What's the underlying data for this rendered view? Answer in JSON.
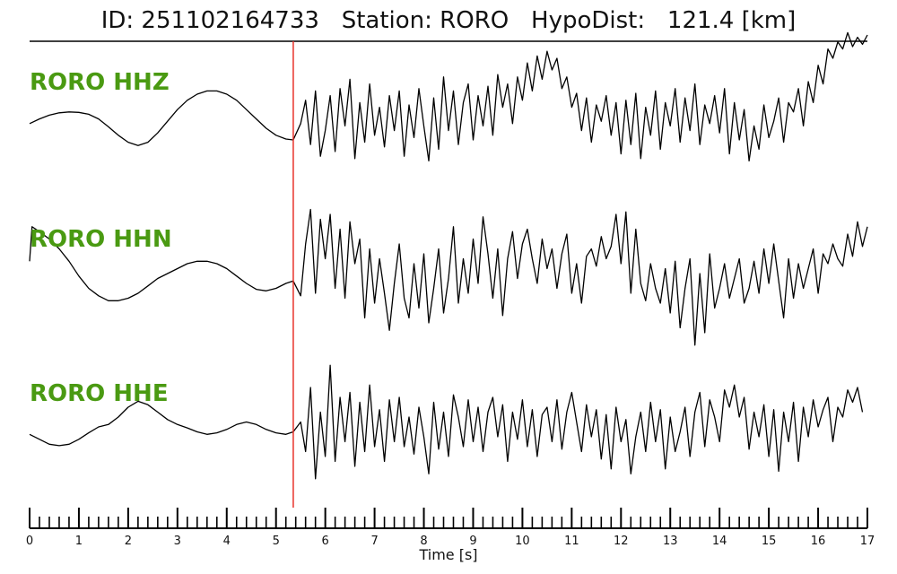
{
  "title": "ID: 251102164733   Station: RORO   HypoDist:   121.4 [km]",
  "chart_data": {
    "type": "line",
    "title": "ID: 251102164733   Station: RORO   HypoDist:   121.4 [km]",
    "xlabel": "Time [s]",
    "xlim": [
      0,
      17
    ],
    "xticks": [
      "0",
      "1",
      "2",
      "3",
      "4",
      "5",
      "6",
      "7",
      "8",
      "9",
      "10",
      "11",
      "12",
      "13",
      "14",
      "15",
      "16",
      "17"
    ],
    "minor_tick_step": 0.2,
    "pick_time": 5.35,
    "pick_color": "#e8322a",
    "label_color": "#4a9a12",
    "trace_color": "#000000",
    "series": [
      {
        "name": "RORO HHZ",
        "t": [
          0,
          0.2,
          0.4,
          0.6,
          0.8,
          1.0,
          1.2,
          1.4,
          1.6,
          1.8,
          2.0,
          2.2,
          2.4,
          2.6,
          2.8,
          3.0,
          3.2,
          3.4,
          3.6,
          3.8,
          4.0,
          4.2,
          4.4,
          4.6,
          4.8,
          5.0,
          5.2,
          5.35,
          5.5,
          5.6,
          5.7,
          5.8,
          5.9,
          6.0,
          6.1,
          6.2,
          6.3,
          6.4,
          6.5,
          6.6,
          6.7,
          6.8,
          6.9,
          7.0,
          7.1,
          7.2,
          7.3,
          7.4,
          7.5,
          7.6,
          7.7,
          7.8,
          7.9,
          8.0,
          8.1,
          8.2,
          8.3,
          8.4,
          8.5,
          8.6,
          8.7,
          8.8,
          8.9,
          9.0,
          9.1,
          9.2,
          9.3,
          9.4,
          9.5,
          9.6,
          9.7,
          9.8,
          9.9,
          10.0,
          10.1,
          10.2,
          10.3,
          10.4,
          10.5,
          10.6,
          10.7,
          10.8,
          10.9,
          11.0,
          11.1,
          11.2,
          11.3,
          11.4,
          11.5,
          11.6,
          11.7,
          11.8,
          11.9,
          12.0,
          12.1,
          12.2,
          12.3,
          12.4,
          12.5,
          12.6,
          12.7,
          12.8,
          12.9,
          13.0,
          13.1,
          13.2,
          13.3,
          13.4,
          13.5,
          13.6,
          13.7,
          13.8,
          13.9,
          14.0,
          14.1,
          14.2,
          14.3,
          14.4,
          14.5,
          14.6,
          14.7,
          14.8,
          14.9,
          15.0,
          15.1,
          15.2,
          15.3,
          15.4,
          15.5,
          15.6,
          15.7,
          15.8,
          15.9,
          16.0,
          16.1,
          16.2,
          16.3,
          16.4,
          16.5,
          16.6,
          16.7,
          16.8,
          16.9,
          17.0
        ],
        "v": [
          -0.15,
          -0.05,
          0.03,
          0.08,
          0.1,
          0.09,
          0.05,
          -0.05,
          -0.22,
          -0.4,
          -0.55,
          -0.62,
          -0.55,
          -0.35,
          -0.1,
          0.15,
          0.35,
          0.48,
          0.55,
          0.55,
          0.48,
          0.35,
          0.15,
          -0.05,
          -0.25,
          -0.4,
          -0.48,
          -0.5,
          -0.15,
          0.35,
          -0.6,
          0.55,
          -0.85,
          -0.3,
          0.45,
          -0.75,
          0.6,
          -0.2,
          0.8,
          -0.9,
          0.3,
          -0.55,
          0.7,
          -0.4,
          0.2,
          -0.65,
          0.45,
          -0.3,
          0.55,
          -0.85,
          0.25,
          -0.45,
          0.6,
          -0.2,
          -0.95,
          0.4,
          -0.7,
          0.85,
          -0.3,
          0.55,
          -0.6,
          0.3,
          0.7,
          -0.5,
          0.45,
          -0.2,
          0.65,
          -0.4,
          0.9,
          0.2,
          0.7,
          -0.15,
          0.85,
          0.35,
          1.15,
          0.55,
          1.3,
          0.8,
          1.4,
          1.0,
          1.25,
          0.6,
          0.85,
          0.2,
          0.5,
          -0.3,
          0.4,
          -0.55,
          0.25,
          -0.1,
          0.45,
          -0.4,
          0.3,
          -0.8,
          0.35,
          -0.6,
          0.5,
          -0.9,
          0.2,
          -0.4,
          0.55,
          -0.7,
          0.3,
          -0.2,
          0.6,
          -0.55,
          0.4,
          -0.3,
          0.7,
          -0.6,
          0.25,
          -0.15,
          0.45,
          -0.35,
          0.6,
          -0.8,
          0.3,
          -0.5,
          0.15,
          -0.95,
          -0.2,
          -0.7,
          0.25,
          -0.45,
          -0.1,
          0.4,
          -0.55,
          0.3,
          0.1,
          0.6,
          -0.2,
          0.75,
          0.3,
          1.1,
          0.7,
          1.45,
          1.25,
          1.6,
          1.45,
          1.8,
          1.5,
          1.7,
          1.55,
          1.75,
          1.6
        ]
      },
      {
        "name": "RORO HHN",
        "t": [
          0,
          0.05,
          0.2,
          0.4,
          0.6,
          0.8,
          1.0,
          1.2,
          1.4,
          1.6,
          1.8,
          2.0,
          2.2,
          2.4,
          2.6,
          2.8,
          3.0,
          3.2,
          3.4,
          3.6,
          3.8,
          4.0,
          4.2,
          4.4,
          4.6,
          4.8,
          5.0,
          5.2,
          5.35,
          5.5,
          5.6,
          5.7,
          5.8,
          5.9,
          6.0,
          6.1,
          6.2,
          6.3,
          6.4,
          6.5,
          6.6,
          6.7,
          6.8,
          6.9,
          7.0,
          7.1,
          7.2,
          7.3,
          7.4,
          7.5,
          7.6,
          7.7,
          7.8,
          7.9,
          8.0,
          8.1,
          8.2,
          8.3,
          8.4,
          8.5,
          8.6,
          8.7,
          8.8,
          8.9,
          9.0,
          9.1,
          9.2,
          9.3,
          9.4,
          9.5,
          9.6,
          9.7,
          9.8,
          9.9,
          10.0,
          10.1,
          10.2,
          10.3,
          10.4,
          10.5,
          10.6,
          10.7,
          10.8,
          10.9,
          11.0,
          11.1,
          11.2,
          11.3,
          11.4,
          11.5,
          11.6,
          11.7,
          11.8,
          11.9,
          12.0,
          12.1,
          12.2,
          12.3,
          12.4,
          12.5,
          12.6,
          12.7,
          12.8,
          12.9,
          13.0,
          13.1,
          13.2,
          13.3,
          13.4,
          13.5,
          13.6,
          13.7,
          13.8,
          13.9,
          14.0,
          14.1,
          14.2,
          14.3,
          14.4,
          14.5,
          14.6,
          14.7,
          14.8,
          14.9,
          15.0,
          15.1,
          15.2,
          15.3,
          15.4,
          15.5,
          15.6,
          15.7,
          15.8,
          15.9,
          16.0,
          16.1,
          16.2,
          16.3,
          16.4,
          16.5,
          16.6,
          16.7,
          16.8,
          16.9,
          17.0
        ],
        "v": [
          0.25,
          0.95,
          0.85,
          0.7,
          0.5,
          0.25,
          -0.05,
          -0.3,
          -0.45,
          -0.55,
          -0.55,
          -0.5,
          -0.4,
          -0.25,
          -0.1,
          0.0,
          0.1,
          0.2,
          0.25,
          0.25,
          0.2,
          0.1,
          -0.05,
          -0.2,
          -0.32,
          -0.35,
          -0.3,
          -0.2,
          -0.15,
          -0.45,
          0.6,
          1.3,
          -0.4,
          1.1,
          0.3,
          1.2,
          -0.3,
          0.9,
          -0.5,
          1.05,
          0.2,
          0.7,
          -0.9,
          0.5,
          -0.6,
          0.3,
          -0.4,
          -1.15,
          -0.2,
          0.6,
          -0.5,
          -0.9,
          0.2,
          -0.7,
          0.4,
          -1.0,
          -0.3,
          0.5,
          -0.8,
          -0.1,
          0.95,
          -0.6,
          0.3,
          -0.4,
          0.7,
          -0.2,
          1.15,
          0.4,
          -0.5,
          0.5,
          -0.85,
          0.3,
          0.85,
          -0.1,
          0.6,
          0.9,
          0.3,
          -0.2,
          0.7,
          0.1,
          0.5,
          -0.3,
          0.4,
          0.8,
          -0.4,
          0.2,
          -0.6,
          0.35,
          0.5,
          0.15,
          0.75,
          0.3,
          0.55,
          1.2,
          0.2,
          1.25,
          -0.4,
          0.9,
          -0.2,
          -0.55,
          0.2,
          -0.3,
          -0.6,
          0.1,
          -0.8,
          0.25,
          -1.1,
          -0.3,
          0.3,
          -1.45,
          0.0,
          -1.2,
          0.4,
          -0.7,
          -0.3,
          0.2,
          -0.5,
          -0.1,
          0.3,
          -0.6,
          -0.3,
          0.25,
          -0.4,
          0.5,
          -0.2,
          0.6,
          -0.15,
          -0.9,
          0.3,
          -0.5,
          0.2,
          -0.3,
          0.1,
          0.5,
          -0.4,
          0.4,
          0.2,
          0.6,
          0.3,
          0.15,
          0.8,
          0.35,
          1.05,
          0.55,
          0.95
        ]
      },
      {
        "name": "RORO HHE",
        "t": [
          0,
          0.2,
          0.4,
          0.6,
          0.8,
          1.0,
          1.2,
          1.4,
          1.6,
          1.8,
          2.0,
          2.2,
          2.4,
          2.6,
          2.8,
          3.0,
          3.2,
          3.4,
          3.6,
          3.8,
          4.0,
          4.2,
          4.4,
          4.6,
          4.8,
          5.0,
          5.2,
          5.35,
          5.5,
          5.6,
          5.7,
          5.8,
          5.9,
          6.0,
          6.1,
          6.2,
          6.3,
          6.4,
          6.5,
          6.6,
          6.7,
          6.8,
          6.9,
          7.0,
          7.1,
          7.2,
          7.3,
          7.4,
          7.5,
          7.6,
          7.7,
          7.8,
          7.9,
          8.0,
          8.1,
          8.2,
          8.3,
          8.4,
          8.5,
          8.6,
          8.7,
          8.8,
          8.9,
          9.0,
          9.1,
          9.2,
          9.3,
          9.4,
          9.5,
          9.6,
          9.7,
          9.8,
          9.9,
          10.0,
          10.1,
          10.2,
          10.3,
          10.4,
          10.5,
          10.6,
          10.7,
          10.8,
          10.9,
          11.0,
          11.1,
          11.2,
          11.3,
          11.4,
          11.5,
          11.6,
          11.7,
          11.8,
          11.9,
          12.0,
          12.1,
          12.2,
          12.3,
          12.4,
          12.5,
          12.6,
          12.7,
          12.8,
          12.9,
          13.0,
          13.1,
          13.2,
          13.3,
          13.4,
          13.5,
          13.6,
          13.7,
          13.8,
          13.9,
          14.0,
          14.1,
          14.2,
          14.3,
          14.4,
          14.5,
          14.6,
          14.7,
          14.8,
          14.9,
          15.0,
          15.1,
          15.2,
          15.3,
          15.4,
          15.5,
          15.6,
          15.7,
          15.8,
          15.9,
          16.0,
          16.1,
          16.2,
          16.3,
          16.4,
          16.5,
          16.6,
          16.7,
          16.8,
          16.9,
          17.0
        ],
        "v": [
          -0.15,
          -0.25,
          -0.35,
          -0.38,
          -0.35,
          -0.25,
          -0.12,
          0.0,
          0.05,
          0.2,
          0.4,
          0.52,
          0.45,
          0.3,
          0.15,
          0.05,
          -0.02,
          -0.1,
          -0.15,
          -0.12,
          -0.05,
          0.05,
          0.1,
          0.05,
          -0.05,
          -0.12,
          -0.15,
          -0.1,
          0.1,
          -0.5,
          0.8,
          -1.05,
          0.3,
          -0.6,
          1.25,
          -0.7,
          0.6,
          -0.3,
          0.7,
          -0.8,
          0.5,
          -0.5,
          0.85,
          -0.4,
          0.35,
          -0.7,
          0.55,
          -0.3,
          0.6,
          -0.4,
          0.2,
          -0.55,
          0.4,
          -0.2,
          -0.95,
          0.5,
          -0.45,
          0.3,
          -0.6,
          0.65,
          0.2,
          -0.4,
          0.55,
          -0.3,
          0.4,
          -0.5,
          0.3,
          0.6,
          -0.2,
          0.45,
          -0.7,
          0.3,
          -0.25,
          0.55,
          -0.4,
          0.35,
          -0.6,
          0.25,
          0.4,
          -0.3,
          0.55,
          -0.45,
          0.3,
          0.7,
          0.1,
          -0.5,
          0.45,
          -0.2,
          0.35,
          -0.65,
          0.25,
          -0.85,
          0.4,
          -0.3,
          0.15,
          -0.95,
          -0.2,
          0.3,
          -0.5,
          0.5,
          -0.3,
          0.35,
          -0.85,
          0.2,
          -0.5,
          -0.1,
          0.4,
          -0.6,
          0.3,
          0.7,
          -0.4,
          0.55,
          0.2,
          -0.3,
          0.75,
          0.4,
          0.85,
          0.2,
          0.6,
          -0.45,
          0.3,
          -0.2,
          0.45,
          -0.6,
          0.35,
          -0.9,
          0.3,
          -0.3,
          0.5,
          -0.7,
          0.4,
          -0.2,
          0.55,
          0.0,
          0.35,
          0.6,
          -0.3,
          0.4,
          0.2,
          0.75,
          0.5,
          0.8,
          0.3
        ]
      }
    ]
  }
}
